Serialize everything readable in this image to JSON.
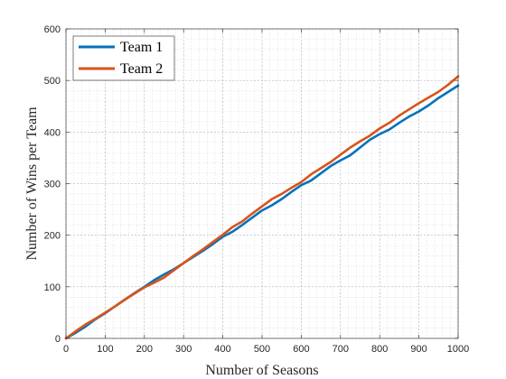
{
  "chart_data": {
    "type": "line",
    "title": "",
    "xlabel": "Number of Seasons",
    "ylabel": "Number of Wins per Team",
    "xlim": [
      0,
      1000
    ],
    "ylim": [
      0,
      600
    ],
    "xticks": [
      0,
      100,
      200,
      300,
      400,
      500,
      600,
      700,
      800,
      900,
      1000
    ],
    "yticks": [
      0,
      100,
      200,
      300,
      400,
      500,
      600
    ],
    "grid": "major and minor (dotted)",
    "legend_position": "top-left",
    "series": [
      {
        "name": "Team 1",
        "color": "#0072BD",
        "x": [
          0,
          25,
          50,
          75,
          100,
          125,
          150,
          175,
          200,
          225,
          250,
          275,
          300,
          325,
          350,
          375,
          400,
          425,
          450,
          475,
          500,
          525,
          550,
          575,
          600,
          625,
          650,
          675,
          700,
          725,
          750,
          775,
          800,
          825,
          850,
          875,
          900,
          925,
          950,
          975,
          1000
        ],
        "y": [
          0,
          11,
          23,
          37,
          49,
          62,
          75,
          88,
          100,
          113,
          124,
          134,
          146,
          158,
          170,
          183,
          197,
          207,
          220,
          234,
          248,
          258,
          270,
          284,
          297,
          306,
          320,
          334,
          345,
          355,
          370,
          385,
          396,
          405,
          418,
          430,
          440,
          452,
          466,
          478,
          490
        ]
      },
      {
        "name": "Team 2",
        "color": "#D95319",
        "x": [
          0,
          25,
          50,
          75,
          100,
          125,
          150,
          175,
          200,
          225,
          250,
          275,
          300,
          325,
          350,
          375,
          400,
          425,
          450,
          475,
          500,
          525,
          550,
          575,
          600,
          625,
          650,
          675,
          700,
          725,
          750,
          775,
          800,
          825,
          850,
          875,
          900,
          925,
          950,
          975,
          1000
        ],
        "y": [
          0,
          14,
          27,
          38,
          50,
          62,
          75,
          87,
          99,
          108,
          118,
          132,
          146,
          160,
          173,
          187,
          201,
          216,
          227,
          242,
          256,
          270,
          280,
          292,
          303,
          318,
          330,
          342,
          356,
          370,
          382,
          393,
          407,
          418,
          432,
          444,
          456,
          467,
          478,
          492,
          508
        ]
      }
    ]
  }
}
